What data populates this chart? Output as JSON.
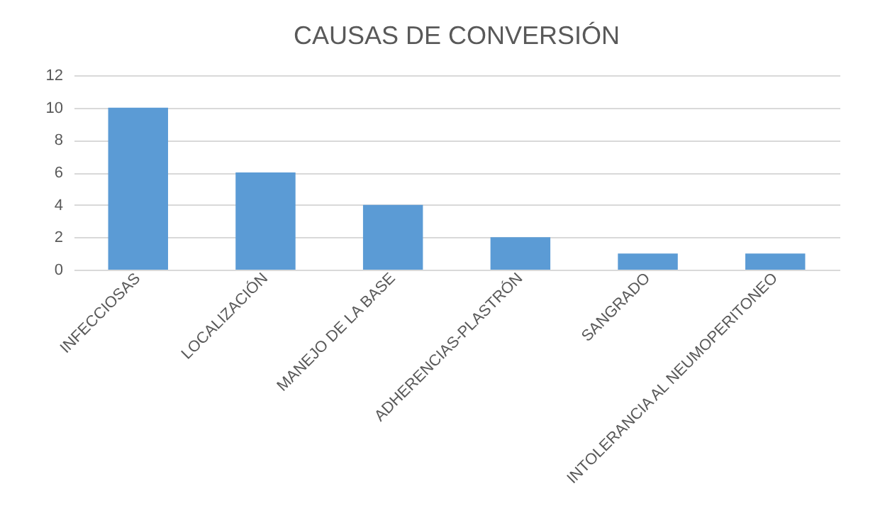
{
  "chart_data": {
    "type": "bar",
    "title": "CAUSAS DE CONVERSIÓN",
    "categories": [
      "INFECCIOSAS",
      "LOCALIZACIÓN",
      "MANEJO DE LA BASE",
      "ADHERENCIAS-PLASTRÓN",
      "SANGRADO",
      "INTOLERANCIA AL NEUMOPERITONEO"
    ],
    "values": [
      10,
      6,
      4,
      2,
      1,
      1
    ],
    "color": "#5b9bd5",
    "ylim": [
      0,
      12
    ],
    "yticks": [
      0,
      2,
      4,
      6,
      8,
      10,
      12
    ],
    "grid": "y"
  }
}
